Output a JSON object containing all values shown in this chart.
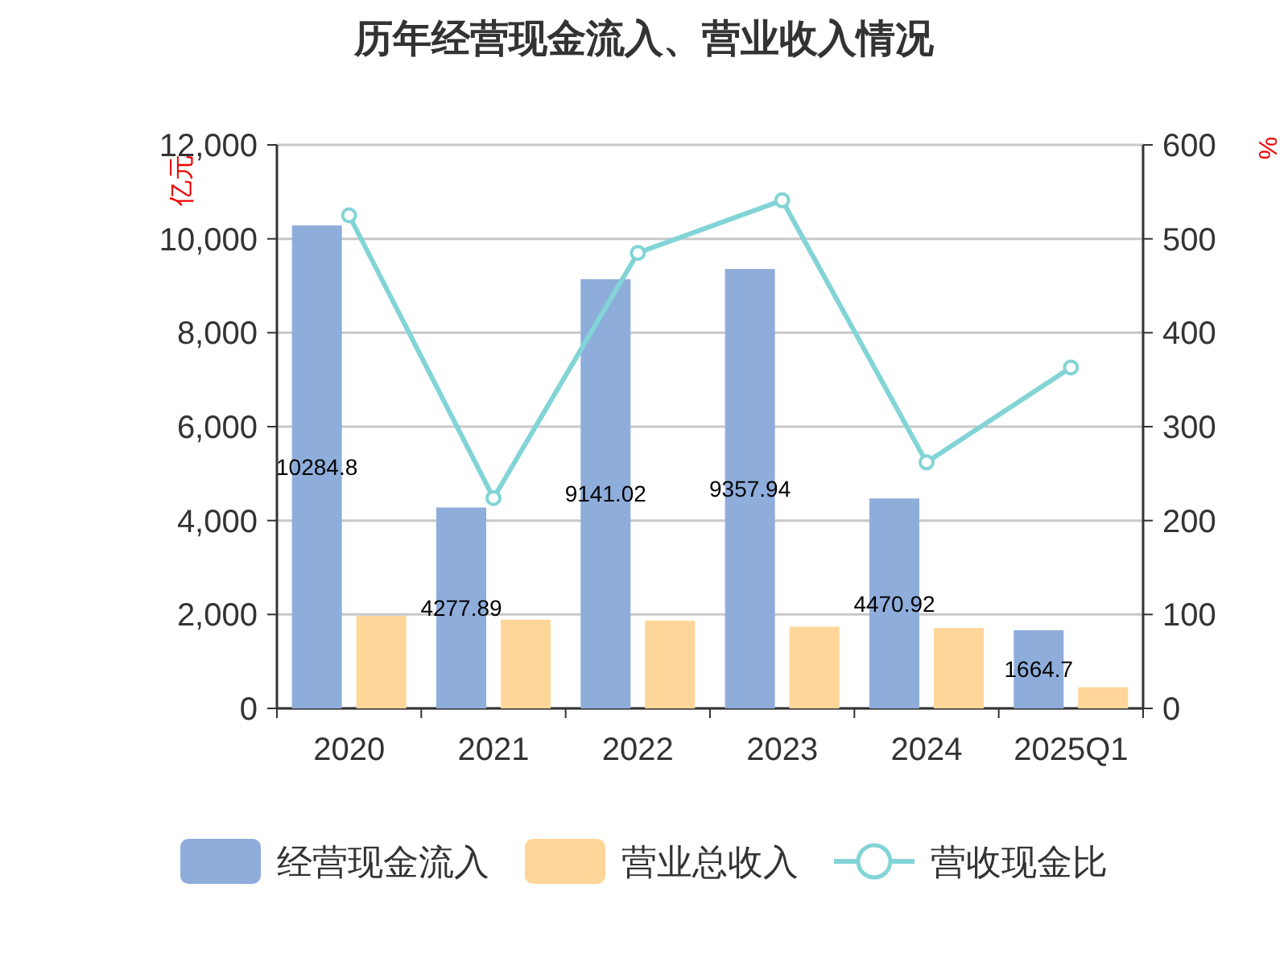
{
  "chart_data": {
    "type": "bar",
    "title": "历年经营现金流入、营业收入情况",
    "ylabel": "亿元",
    "y2label": "%",
    "categories": [
      "2020",
      "2021",
      "2022",
      "2023",
      "2024",
      "2025Q1"
    ],
    "series": [
      {
        "name": "经营现金流入",
        "color": "#8eaddb",
        "values": [
          10284.8,
          4277.89,
          9141.02,
          9357.94,
          4470.92,
          1664.7
        ],
        "value_labels": [
          "10284.8",
          "4277.89",
          "9141.02",
          "9357.94",
          "4470.92",
          "1664.7"
        ]
      },
      {
        "name": "营业总收入",
        "color": "#ffd699",
        "values": [
          1970,
          1890,
          1870,
          1740,
          1710,
          450
        ]
      },
      {
        "name": "营收现金比",
        "type": "line",
        "axis": "y2",
        "color": "#82d4d6",
        "marker": "circle",
        "values": [
          525,
          224,
          485,
          541,
          262,
          363
        ]
      }
    ],
    "ylim": [
      0,
      12000
    ],
    "yticks": [
      {
        "value": 0,
        "label": "0"
      },
      {
        "value": 2000,
        "label": "2,000"
      },
      {
        "value": 4000,
        "label": "4,000"
      },
      {
        "value": 6000,
        "label": "6,000"
      },
      {
        "value": 8000,
        "label": "8,000"
      },
      {
        "value": 10000,
        "label": "10,000"
      },
      {
        "value": 12000,
        "label": "12,000"
      }
    ],
    "y2lim": [
      0,
      600
    ],
    "y2ticks": [
      0,
      100,
      200,
      300,
      400,
      500,
      600
    ],
    "grid": "y",
    "legend": "bottom"
  }
}
